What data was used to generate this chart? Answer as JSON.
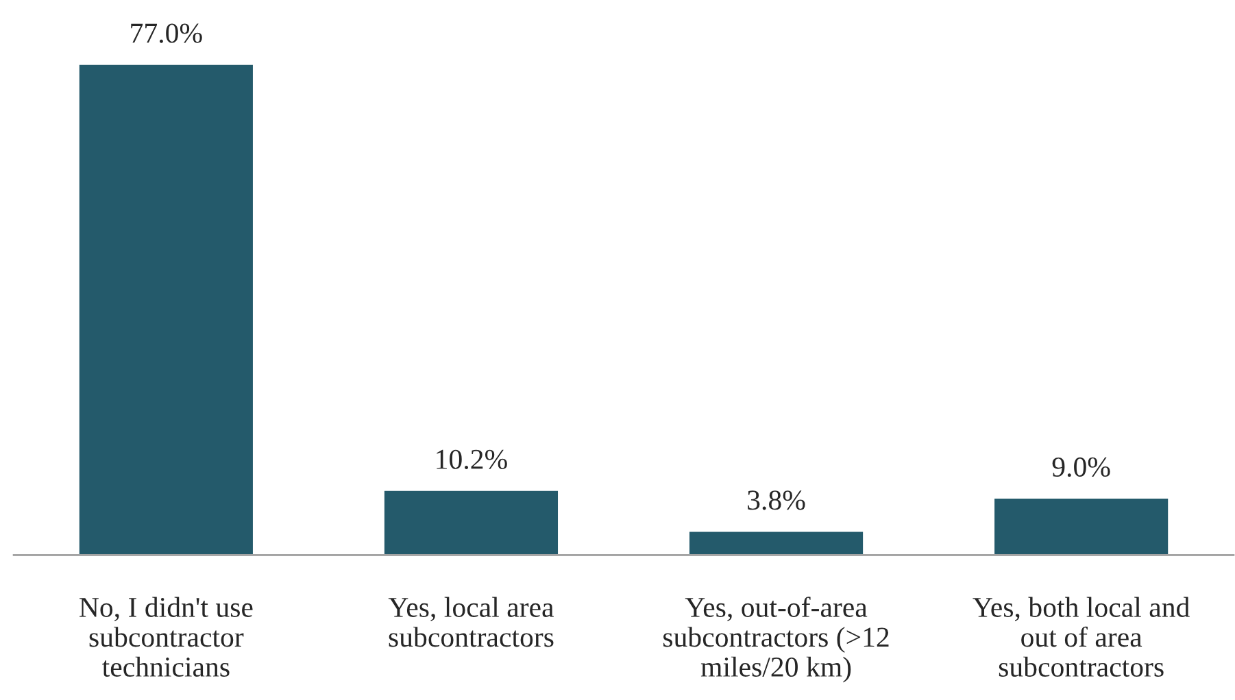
{
  "chart_data": {
    "type": "bar",
    "categories": [
      "No, I didn't use\nsubcontractor\ntechnicians",
      "Yes, local area\nsubcontractors",
      "Yes, out-of-area\nsubcontractors (>12\nmiles/20 km)",
      "Yes, both local and\nout of area\nsubcontractors"
    ],
    "values": [
      77.0,
      10.2,
      3.8,
      9.0
    ],
    "value_labels": [
      "77.0%",
      "10.2%",
      "3.8%",
      "9.0%"
    ],
    "color": "#245a6b",
    "grid": false,
    "legend": false
  }
}
